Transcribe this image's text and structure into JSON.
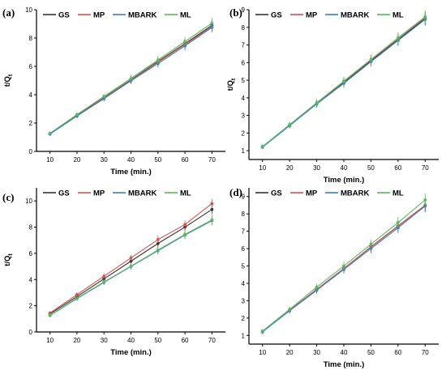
{
  "chart_data": [
    {
      "type": "line",
      "panel_label": "(a)",
      "xlabel": "Time (min.)",
      "ylabel": "t/Q",
      "ylabel_sub": "t",
      "x": [
        10,
        20,
        30,
        40,
        50,
        60,
        70
      ],
      "xticks": [
        10,
        20,
        30,
        40,
        50,
        60,
        70
      ],
      "yticks": [
        0,
        2,
        4,
        6,
        8,
        10
      ],
      "xlim": [
        5,
        75
      ],
      "ylim": [
        0,
        10
      ],
      "legend_position": "top",
      "series": [
        {
          "name": "GS",
          "color": "#333333",
          "values": [
            1.25,
            2.55,
            3.8,
            5.05,
            6.35,
            7.6,
            8.9
          ]
        },
        {
          "name": "MP",
          "color": "#d9534f",
          "values": [
            1.25,
            2.52,
            3.78,
            5.02,
            6.3,
            7.55,
            8.8
          ]
        },
        {
          "name": "MBARK",
          "color": "#3a7cc8",
          "values": [
            1.22,
            2.5,
            3.72,
            4.98,
            6.2,
            7.45,
            8.75
          ]
        },
        {
          "name": "ML",
          "color": "#5cb85c",
          "values": [
            1.28,
            2.6,
            3.88,
            5.15,
            6.45,
            7.75,
            9.05
          ]
        }
      ]
    },
    {
      "type": "line",
      "panel_label": "(b)",
      "xlabel": "Time (min.)",
      "ylabel": "t/Q",
      "ylabel_sub": "t",
      "x": [
        10,
        20,
        30,
        40,
        50,
        60,
        70
      ],
      "xticks": [
        10,
        20,
        30,
        40,
        50,
        60,
        70
      ],
      "yticks": [
        1,
        2,
        3,
        4,
        5,
        6,
        7,
        8,
        9
      ],
      "xlim": [
        5,
        75
      ],
      "ylim": [
        0.5,
        9
      ],
      "legend_position": "top",
      "series": [
        {
          "name": "GS",
          "color": "#333333",
          "values": [
            1.22,
            2.45,
            3.68,
            4.88,
            6.1,
            7.3,
            8.5
          ]
        },
        {
          "name": "MP",
          "color": "#d9534f",
          "values": [
            1.22,
            2.46,
            3.7,
            4.92,
            6.15,
            7.38,
            8.55
          ]
        },
        {
          "name": "MBARK",
          "color": "#3a7cc8",
          "values": [
            1.2,
            2.42,
            3.65,
            4.82,
            6.05,
            7.25,
            8.45
          ]
        },
        {
          "name": "ML",
          "color": "#5cb85c",
          "values": [
            1.24,
            2.48,
            3.72,
            4.95,
            6.18,
            7.4,
            8.6
          ]
        }
      ]
    },
    {
      "type": "line",
      "panel_label": "(c)",
      "xlabel": "Time (min.)",
      "ylabel": "t/Q",
      "ylabel_sub": "t",
      "x": [
        10,
        20,
        30,
        40,
        50,
        60,
        70
      ],
      "xticks": [
        10,
        20,
        30,
        40,
        50,
        60,
        70
      ],
      "yticks": [
        0,
        2,
        4,
        6,
        8,
        10
      ],
      "xlim": [
        5,
        75
      ],
      "ylim": [
        0,
        11
      ],
      "legend_position": "top",
      "series": [
        {
          "name": "GS",
          "color": "#333333",
          "values": [
            1.38,
            2.7,
            4.05,
            5.4,
            6.75,
            8.0,
            9.35
          ]
        },
        {
          "name": "MP",
          "color": "#d9534f",
          "values": [
            1.45,
            2.85,
            4.25,
            5.65,
            7.05,
            8.2,
            9.8
          ]
        },
        {
          "name": "MBARK",
          "color": "#3a7cc8",
          "values": [
            1.25,
            2.55,
            3.78,
            5.0,
            6.2,
            7.4,
            8.5
          ]
        },
        {
          "name": "ML",
          "color": "#5cb85c",
          "values": [
            1.27,
            2.58,
            3.82,
            5.02,
            6.25,
            7.45,
            8.55
          ]
        }
      ]
    },
    {
      "type": "line",
      "panel_label": "(d)",
      "xlabel": "Time (min.)",
      "ylabel": "",
      "ylabel_sub": "",
      "x": [
        10,
        20,
        30,
        40,
        50,
        60,
        70
      ],
      "xticks": [
        10,
        20,
        30,
        40,
        50,
        60,
        70
      ],
      "yticks": [
        1,
        2,
        3,
        4,
        5,
        6,
        7,
        8,
        9
      ],
      "xlim": [
        5,
        75
      ],
      "ylim": [
        0.5,
        9.5
      ],
      "legend_position": "top",
      "series": [
        {
          "name": "GS",
          "color": "#333333",
          "values": [
            1.22,
            2.45,
            3.65,
            4.85,
            6.1,
            7.3,
            8.5
          ]
        },
        {
          "name": "MP",
          "color": "#d9534f",
          "values": [
            1.22,
            2.45,
            3.65,
            4.85,
            6.08,
            7.28,
            8.5
          ]
        },
        {
          "name": "MBARK",
          "color": "#3a7cc8",
          "values": [
            1.2,
            2.42,
            3.6,
            4.8,
            6.0,
            7.2,
            8.45
          ]
        },
        {
          "name": "ML",
          "color": "#5cb85c",
          "values": [
            1.25,
            2.5,
            3.78,
            5.0,
            6.25,
            7.5,
            8.8
          ]
        }
      ]
    }
  ]
}
